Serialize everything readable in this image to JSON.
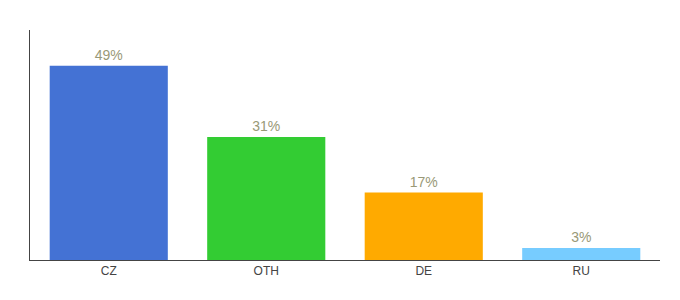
{
  "chart_data": {
    "type": "bar",
    "categories": [
      "CZ",
      "OTH",
      "DE",
      "RU"
    ],
    "values": [
      49,
      31,
      17,
      3
    ],
    "value_labels": [
      "49%",
      "31%",
      "17%",
      "3%"
    ],
    "colors": [
      "#4472d4",
      "#33cc33",
      "#ffaa00",
      "#77ccff"
    ],
    "ylim": [
      0,
      58
    ],
    "yticks": [],
    "grid": false,
    "data_labels": true,
    "tick_labels": "x"
  }
}
